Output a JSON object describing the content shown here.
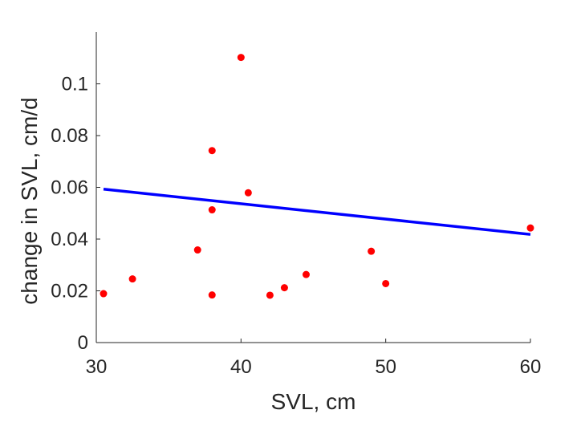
{
  "chart_data": {
    "type": "scatter",
    "title": "",
    "xlabel": "SVL, cm",
    "ylabel": "change in SVL, cm/d",
    "xlim": [
      30,
      60
    ],
    "ylim": [
      0,
      0.12
    ],
    "x_ticks": [
      30,
      40,
      50,
      60
    ],
    "x_tick_labels": [
      "30",
      "40",
      "50",
      "60"
    ],
    "y_ticks": [
      0,
      0.02,
      0.04,
      0.06,
      0.08,
      0.1
    ],
    "y_tick_labels": [
      "0",
      "0.02",
      "0.04",
      "0.06",
      "0.08",
      "0.1"
    ],
    "grid": false,
    "series": [
      {
        "type": "scatter",
        "color": "#ff0000",
        "points": [
          {
            "x": 30.5,
            "y": 0.0189
          },
          {
            "x": 32.5,
            "y": 0.0246
          },
          {
            "x": 37.0,
            "y": 0.0358
          },
          {
            "x": 38.0,
            "y": 0.0742
          },
          {
            "x": 38.0,
            "y": 0.0513
          },
          {
            "x": 38.0,
            "y": 0.0184
          },
          {
            "x": 40.0,
            "y": 0.1102
          },
          {
            "x": 40.5,
            "y": 0.0579
          },
          {
            "x": 42.0,
            "y": 0.0183
          },
          {
            "x": 43.0,
            "y": 0.0212
          },
          {
            "x": 44.5,
            "y": 0.0263
          },
          {
            "x": 49.0,
            "y": 0.0353
          },
          {
            "x": 50.0,
            "y": 0.0228
          },
          {
            "x": 60.0,
            "y": 0.0443
          }
        ]
      },
      {
        "type": "line",
        "color": "#0000ff",
        "points": [
          {
            "x": 30.5,
            "y": 0.0593
          },
          {
            "x": 60.0,
            "y": 0.0418
          }
        ]
      }
    ]
  }
}
